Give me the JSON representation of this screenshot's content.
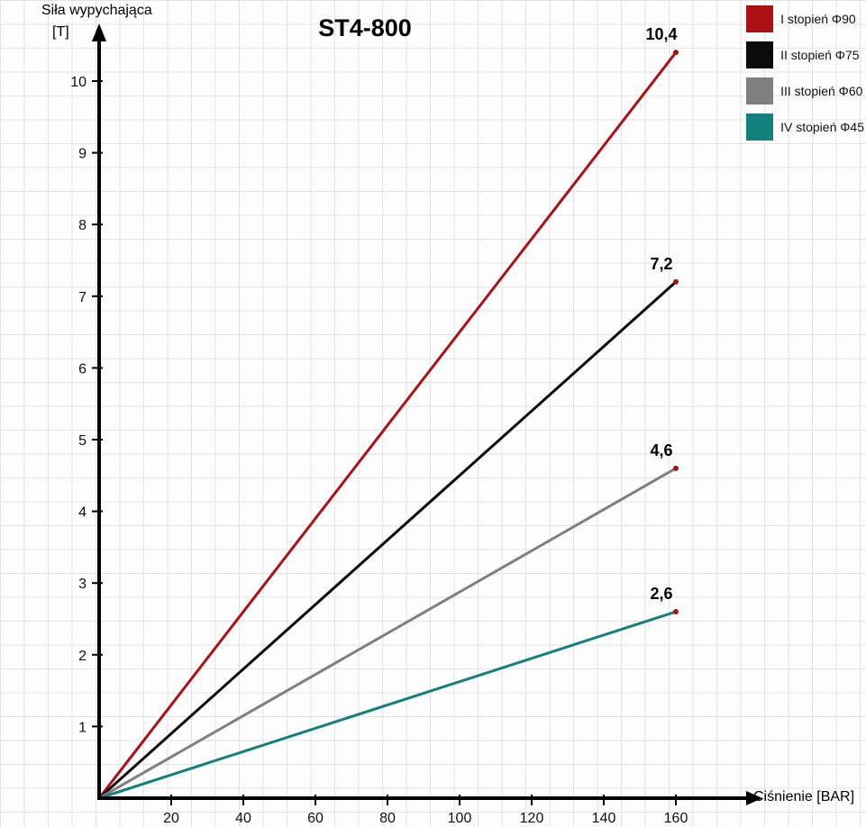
{
  "chart_data": {
    "type": "line",
    "title": "ST4-800",
    "xlabel": "Ciśnienie [BAR]",
    "ylabel_line1": "Siła wypychająca",
    "ylabel_line2": "[T]",
    "x_ticks": [
      20,
      40,
      60,
      80,
      100,
      120,
      140,
      160
    ],
    "y_ticks": [
      1,
      2,
      3,
      4,
      5,
      6,
      7,
      8,
      9,
      10
    ],
    "xlim": [
      0,
      168
    ],
    "ylim": [
      0,
      10.8
    ],
    "grid": true,
    "legend_position": "top-right",
    "marker_color": "#a31515",
    "axis_color": "#000000",
    "series": [
      {
        "name": "I stopień Φ90",
        "color": "#ad1116",
        "x": [
          0,
          160
        ],
        "values": [
          0,
          10.4
        ],
        "end_label": "10,4"
      },
      {
        "name": "II stopień Φ75",
        "color": "#0b0b0b",
        "x": [
          0,
          160
        ],
        "values": [
          0,
          7.2
        ],
        "end_label": "7,2"
      },
      {
        "name": "III stopień Φ60",
        "color": "#7f7f7f",
        "x": [
          0,
          160
        ],
        "values": [
          0,
          4.6
        ],
        "end_label": "4,6"
      },
      {
        "name": "IV stopień Φ45",
        "color": "#14807b",
        "x": [
          0,
          160
        ],
        "values": [
          0,
          2.6
        ],
        "end_label": "2,6"
      }
    ]
  }
}
